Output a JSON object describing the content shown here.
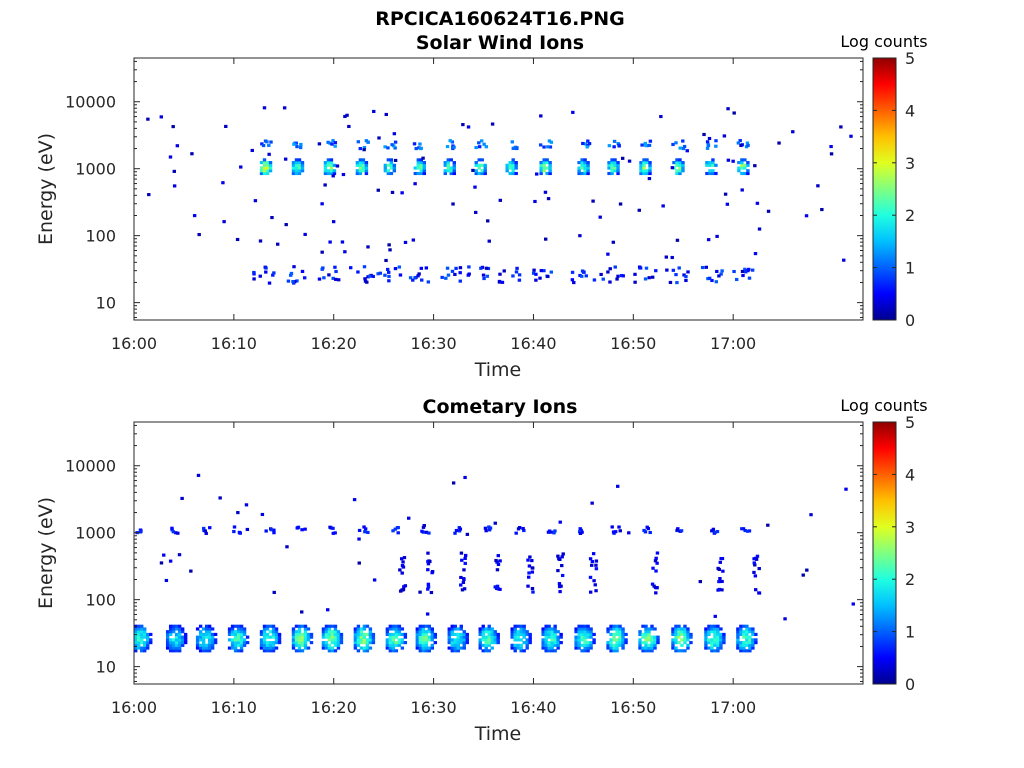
{
  "figure": {
    "filename": "RPCICA160624T16.PNG"
  },
  "colormap": [
    "#00008f",
    "#0000ff",
    "#0060ff",
    "#00c0ff",
    "#20ffe0",
    "#80ff80",
    "#e0ff20",
    "#ffc000",
    "#ff6000",
    "#ff0000",
    "#8f0000"
  ],
  "chart_data": [
    {
      "type": "heatmap",
      "title": "Solar Wind Ions",
      "xlabel": "Time",
      "ylabel": "Energy (eV)",
      "x_ticks": [
        "16:00",
        "16:10",
        "16:20",
        "16:30",
        "16:40",
        "16:50",
        "17:00"
      ],
      "x_range_min": [
        0,
        73
      ],
      "y_scale": "log",
      "y_range_eV": [
        5.5,
        45000
      ],
      "y_ticks": [
        {
          "value": 10,
          "label": "10"
        },
        {
          "value": 100,
          "label": "100"
        },
        {
          "value": 1000,
          "label": "1000"
        },
        {
          "value": 10000,
          "label": "10000"
        }
      ],
      "colorbar": {
        "label": "Log counts",
        "range": [
          0,
          5
        ],
        "ticks": [
          "0",
          "1",
          "2",
          "3",
          "4",
          "5"
        ]
      },
      "peak_interval_min": 3.2,
      "blobs": [
        {
          "t": 13,
          "e": 1000,
          "v": 2.9
        },
        {
          "t": 16.2,
          "e": 1000,
          "v": 2.3
        },
        {
          "t": 19.4,
          "e": 1000,
          "v": 2.5
        },
        {
          "t": 22.6,
          "e": 1000,
          "v": 2.5
        },
        {
          "t": 25.4,
          "e": 1000,
          "v": 2.2
        },
        {
          "t": 28.4,
          "e": 1000,
          "v": 2.4
        },
        {
          "t": 31.4,
          "e": 1000,
          "v": 2.2
        },
        {
          "t": 34.5,
          "e": 1000,
          "v": 2.3
        },
        {
          "t": 37.6,
          "e": 1000,
          "v": 2.3
        },
        {
          "t": 41,
          "e": 1000,
          "v": 2.6
        },
        {
          "t": 44.8,
          "e": 1000,
          "v": 2.3
        },
        {
          "t": 47.8,
          "e": 1000,
          "v": 2.3
        },
        {
          "t": 51,
          "e": 1000,
          "v": 2.5
        },
        {
          "t": 54.3,
          "e": 1000,
          "v": 2.5
        },
        {
          "t": 57.6,
          "e": 1000,
          "v": 2.3
        },
        {
          "t": 60.8,
          "e": 1000,
          "v": 2.5
        }
      ]
    },
    {
      "type": "heatmap",
      "title": "Cometary Ions",
      "xlabel": "Time",
      "ylabel": "Energy (eV)",
      "x_ticks": [
        "16:00",
        "16:10",
        "16:20",
        "16:30",
        "16:40",
        "16:50",
        "17:00"
      ],
      "x_range_min": [
        0,
        73
      ],
      "y_scale": "log",
      "y_range_eV": [
        5.5,
        45000
      ],
      "y_ticks": [
        {
          "value": 10,
          "label": "10"
        },
        {
          "value": 100,
          "label": "100"
        },
        {
          "value": 1000,
          "label": "1000"
        },
        {
          "value": 10000,
          "label": "10000"
        }
      ],
      "colorbar": {
        "label": "Log counts",
        "range": [
          0,
          5
        ],
        "ticks": [
          "0",
          "1",
          "2",
          "3",
          "4",
          "5"
        ]
      },
      "peak_interval_min": 3.2,
      "blobs": [
        {
          "t": 0.5,
          "e": 25,
          "v": 2.0
        },
        {
          "t": 4,
          "e": 25,
          "v": 1.8
        },
        {
          "t": 7,
          "e": 25,
          "v": 1.9
        },
        {
          "t": 10.2,
          "e": 25,
          "v": 2.1
        },
        {
          "t": 13.4,
          "e": 25,
          "v": 2.1
        },
        {
          "t": 16.6,
          "e": 25,
          "v": 2.4
        },
        {
          "t": 19.6,
          "e": 25,
          "v": 2.4
        },
        {
          "t": 22.8,
          "e": 25,
          "v": 2.5
        },
        {
          "t": 26,
          "e": 25,
          "v": 2.3
        },
        {
          "t": 29,
          "e": 25,
          "v": 2.3
        },
        {
          "t": 32.2,
          "e": 25,
          "v": 2.0
        },
        {
          "t": 35.3,
          "e": 25,
          "v": 2.2
        },
        {
          "t": 38.5,
          "e": 25,
          "v": 2.0
        },
        {
          "t": 41.6,
          "e": 25,
          "v": 2.1
        },
        {
          "t": 44.9,
          "e": 25,
          "v": 2.2
        },
        {
          "t": 48.1,
          "e": 25,
          "v": 2.4
        },
        {
          "t": 51.3,
          "e": 25,
          "v": 2.4
        },
        {
          "t": 54.6,
          "e": 25,
          "v": 2.5
        },
        {
          "t": 57.9,
          "e": 25,
          "v": 2.3
        },
        {
          "t": 61.1,
          "e": 25,
          "v": 2.2
        }
      ]
    }
  ]
}
